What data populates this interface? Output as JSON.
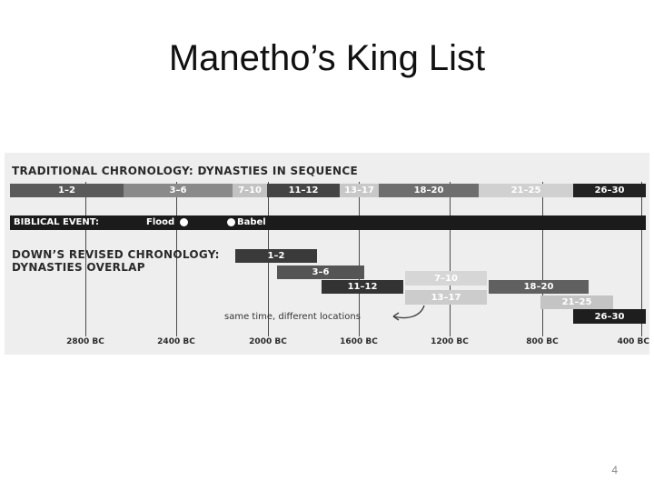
{
  "slide": {
    "title": "Manetho’s King List",
    "page_number": "4"
  },
  "figure": {
    "traditional_heading": "TRADITIONAL CHRONOLOGY:  DYNASTIES IN SEQUENCE",
    "traditional_segments": [
      {
        "label": "1–2",
        "fill": "#5a5a5a",
        "text_color": "#ffffff"
      },
      {
        "label": "3–6",
        "fill": "#8a8a8a",
        "text_color": "#ffffff"
      },
      {
        "label": "7–10",
        "fill": "#c2c2c2",
        "text_color": "#ffffff"
      },
      {
        "label": "11–12",
        "fill": "#444444",
        "text_color": "#ffffff"
      },
      {
        "label": "13–17",
        "fill": "#c8c8c8",
        "text_color": "#ffffff"
      },
      {
        "label": "18–20",
        "fill": "#6e6e6e",
        "text_color": "#ffffff"
      },
      {
        "label": "21–25",
        "fill": "#d0d0d0",
        "text_color": "#ffffff"
      },
      {
        "label": "26–30",
        "fill": "#222222",
        "text_color": "#ffffff"
      }
    ],
    "biblical": {
      "label": "BIBLICAL EVENT:",
      "flood": "Flood",
      "babel": "Babel"
    },
    "revised_heading_line1": "DOWN’S REVISED CHRONOLOGY:",
    "revised_heading_line2": "DYNASTIES OVERLAP",
    "revised_bars": [
      {
        "label": "1–2",
        "fill": "#3a3a3a",
        "text_color": "#ffffff"
      },
      {
        "label": "3–6",
        "fill": "#555555",
        "text_color": "#ffffff"
      },
      {
        "label": "11–12",
        "fill": "#333333",
        "text_color": "#ffffff"
      },
      {
        "label": "7–10",
        "fill": "#d6d6d6",
        "text_color": "#ffffff"
      },
      {
        "label": "13–17",
        "fill": "#cccccc",
        "text_color": "#ffffff"
      },
      {
        "label": "18–20",
        "fill": "#606060",
        "text_color": "#ffffff"
      },
      {
        "label": "21–25",
        "fill": "#c4c4c4",
        "text_color": "#ffffff"
      },
      {
        "label": "26–30",
        "fill": "#1e1e1e",
        "text_color": "#ffffff"
      }
    ],
    "annotation": "same time, different locations",
    "axis_labels": [
      "2800 BC",
      "2400 BC",
      "2000 BC",
      "1600 BC",
      "1200 BC",
      "800 BC",
      "400 BC"
    ]
  }
}
